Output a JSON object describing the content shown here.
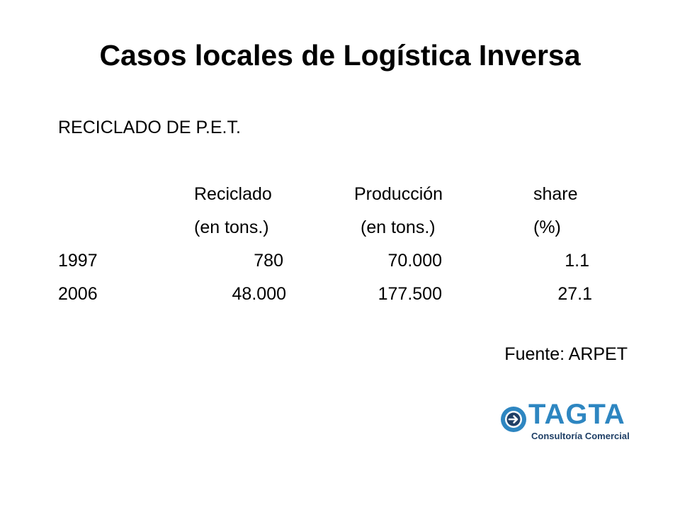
{
  "title": "Casos locales de Logística Inversa",
  "subtitle": "RECICLADO DE P.E.T.",
  "table": {
    "headers": [
      {
        "line1": "Reciclado",
        "line2": "(en tons.)"
      },
      {
        "line1": "Producción",
        "line2": "(en tons.)"
      },
      {
        "line1": "share",
        "line2": "(%)"
      }
    ],
    "rows": [
      {
        "year": "1997",
        "reciclado": "780",
        "produccion": "70.000",
        "share": "1.1"
      },
      {
        "year": "2006",
        "reciclado": "48.000",
        "produccion": "177.500",
        "share": "27.1"
      }
    ]
  },
  "source": "Fuente: ARPET",
  "logo": {
    "name": "TAGTA",
    "tagline": "Consultoría Comercial",
    "icon": "arrow-right-circle-icon",
    "primary_color": "#2e86c1",
    "secondary_color": "#1f3f66"
  }
}
